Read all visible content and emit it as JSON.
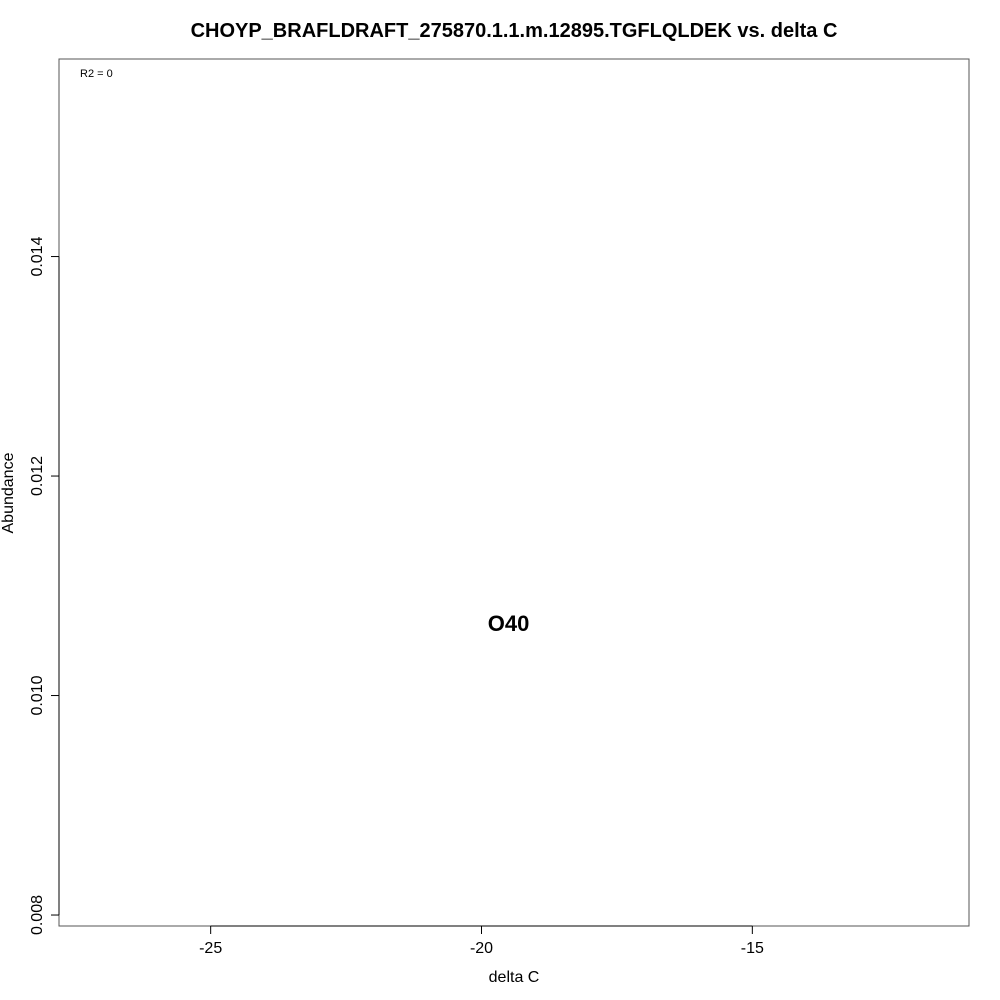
{
  "chart_data": {
    "type": "scatter",
    "title": "CHOYP_BRAFLDRAFT_275870.1.1.m.12895.TGFLQLDEK vs. delta C",
    "xlabel": "delta C",
    "ylabel": "Abundance",
    "xlim": [
      -27.8,
      -11.0
    ],
    "ylim": [
      0.0079,
      0.0158
    ],
    "x_ticks": [
      -25,
      -20,
      -15
    ],
    "x_tick_labels": [
      "-25",
      "-20",
      "-15"
    ],
    "y_ticks": [
      0.008,
      0.01,
      0.012,
      0.014
    ],
    "y_tick_labels": [
      "0.008",
      "0.010",
      "0.012",
      "0.014"
    ],
    "annotation": "R2 = 0",
    "grid": false,
    "points": [
      {
        "label": "O40",
        "x": -19.5,
        "y": 0.01066
      }
    ]
  }
}
